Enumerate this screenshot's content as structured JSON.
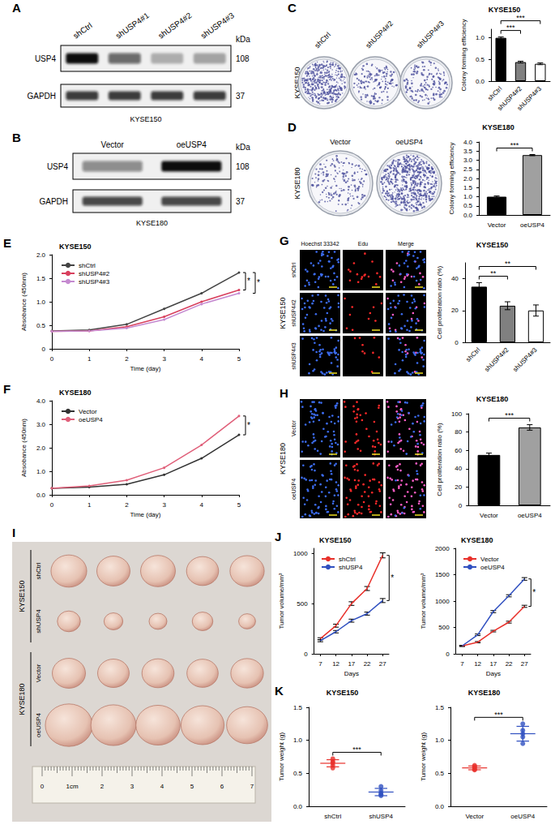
{
  "blots": [
    {
      "panel": "A",
      "cell_line": "KYSE150",
      "kda_label": "kDa",
      "lanes": [
        "shCtrl",
        "shUSP4#1",
        "shUSP4#2",
        "shUSP4#3"
      ],
      "rows": [
        {
          "label": "USP4",
          "kda": "108",
          "intensity": [
            1.0,
            0.6,
            0.28,
            0.32
          ]
        },
        {
          "label": "GAPDH",
          "kda": "37",
          "intensity": [
            0.8,
            0.8,
            0.8,
            0.8
          ]
        }
      ]
    },
    {
      "panel": "B",
      "cell_line": "KYSE180",
      "kda_label": "kDa",
      "lanes": [
        "Vector",
        "oeUSP4"
      ],
      "rows": [
        {
          "label": "USP4",
          "kda": "108",
          "intensity": [
            0.45,
            1.0
          ]
        },
        {
          "label": "GAPDH",
          "kda": "37",
          "intensity": [
            0.75,
            0.75
          ]
        }
      ]
    }
  ],
  "colony_images": [
    {
      "panel": "C",
      "cell_line": "KYSE150",
      "labels": [
        "shCtrl",
        "shUSP4#2",
        "shUSP4#3"
      ],
      "density": [
        1.0,
        0.44,
        0.4
      ]
    },
    {
      "panel": "D",
      "cell_line": "KYSE180",
      "labels": [
        "Vector",
        "oeUSP4"
      ],
      "density": [
        1.0,
        3.3
      ]
    }
  ],
  "edu_images": [
    {
      "panel": "G",
      "cell_line": "KYSE150",
      "columns": [
        "Hoechst 33342",
        "Edu",
        "Merge"
      ],
      "rows": [
        "shCtrl",
        "shUSP4#2",
        "shUSP4#3"
      ],
      "edu_percent": [
        35,
        23,
        20
      ]
    },
    {
      "panel": "H",
      "cell_line": "KYSE180",
      "columns": [],
      "rows": [
        "Vector",
        "oeUSP4"
      ],
      "edu_percent": [
        55,
        85
      ]
    }
  ],
  "tumor_photo": {
    "panel": "I",
    "groups": [
      {
        "cell_line": "KYSE150",
        "rows": [
          "shCtrl",
          "shUSP4"
        ]
      },
      {
        "cell_line": "KYSE180",
        "rows": [
          "Vector",
          "oeUSP4"
        ]
      }
    ],
    "ruler_labels": [
      "0",
      "1cm",
      "2",
      "3",
      "4",
      "5",
      "6",
      "7"
    ]
  },
  "chart_data": [
    {
      "type": "bar",
      "title": "KYSE150",
      "y_label": "Colony forming efficiency",
      "categories": [
        "shCtrl",
        "shUSP4#2",
        "shUSP4#3"
      ],
      "values": [
        1.0,
        0.44,
        0.4
      ],
      "errors": [
        0.02,
        0.02,
        0.02
      ],
      "colors": [
        "#000000",
        "#808080",
        "#ffffff"
      ],
      "ylim": [
        0,
        1.2
      ],
      "yticks": [
        {
          "value": 0,
          "label": "0.0"
        },
        {
          "value": 0.5,
          "label": "0.5"
        },
        {
          "value": 1,
          "label": "1.0"
        }
      ],
      "grid": false,
      "annotations": [
        {
          "text": "***",
          "between": [
            "shCtrl",
            "shUSP4#2"
          ]
        },
        {
          "text": "***",
          "between": [
            "shCtrl",
            "shUSP4#3"
          ]
        }
      ]
    },
    {
      "type": "bar",
      "title": "KYSE180",
      "y_label": "Colony forming efficiency",
      "categories": [
        "Vector",
        "oeUSP4"
      ],
      "values": [
        1.0,
        3.28
      ],
      "errors": [
        0.04,
        0.03
      ],
      "colors": [
        "#000000",
        "#a0a0a0"
      ],
      "ylim": [
        0,
        4
      ],
      "yticks": [
        {
          "value": 0,
          "label": "0.0"
        },
        {
          "value": 0.5,
          "label": "0.5"
        },
        {
          "value": 1,
          "label": "1.0"
        },
        {
          "value": 1.5,
          "label": "1.5"
        },
        {
          "value": 2,
          "label": "2.0"
        },
        {
          "value": 2.5,
          "label": "2.5"
        },
        {
          "value": 3,
          "label": "3.0"
        },
        {
          "value": 3.5,
          "label": "3.5"
        },
        {
          "value": 4,
          "label": "4.0"
        }
      ],
      "grid": false,
      "annotations": [
        {
          "text": "***",
          "between": [
            "Vector",
            "oeUSP4"
          ]
        }
      ]
    },
    {
      "type": "line",
      "panel": "E",
      "title": "KYSE150",
      "x_label": "Time (day)",
      "y_label": "Absobance (450nm)",
      "x": [
        0,
        1,
        2,
        3,
        4,
        5
      ],
      "xlim": [
        0,
        5
      ],
      "xticks": [
        0,
        1,
        2,
        3,
        4,
        5
      ],
      "ylim": [
        0,
        2
      ],
      "yticks": [
        0,
        0.5,
        {
          "value": 1,
          "label": "1.0"
        },
        1.5,
        {
          "value": 2,
          "label": "2.0"
        }
      ],
      "series": [
        {
          "name": "shCtrl",
          "color": "#444444",
          "values": [
            0.38,
            0.4,
            0.52,
            0.85,
            1.18,
            1.62
          ]
        },
        {
          "name": "shUSP4#2",
          "color": "#d8405e",
          "values": [
            0.37,
            0.38,
            0.47,
            0.68,
            1.0,
            1.25
          ]
        },
        {
          "name": "shUSP4#3",
          "color": "#c58ad0",
          "values": [
            0.37,
            0.38,
            0.44,
            0.62,
            0.95,
            1.18
          ]
        }
      ],
      "marker": "circle",
      "legend": "top-left",
      "grid": false,
      "annotations": [
        {
          "text": "*",
          "between": [
            "shCtrl",
            "shUSP4#2"
          ]
        },
        {
          "text": "*",
          "between": [
            "shCtrl",
            "shUSP4#3"
          ]
        }
      ]
    },
    {
      "type": "line",
      "panel": "F",
      "title": "KYSE180",
      "x_label": "Time (day)",
      "y_label": "Absobance (450nm)",
      "x": [
        0,
        1,
        2,
        3,
        4,
        5
      ],
      "xlim": [
        0,
        5
      ],
      "xticks": [
        0,
        1,
        2,
        3,
        4,
        5
      ],
      "ylim": [
        0,
        4
      ],
      "yticks": [
        {
          "value": 0,
          "label": "0.0"
        },
        {
          "value": 1,
          "label": "1.0"
        },
        {
          "value": 2,
          "label": "2.0"
        },
        {
          "value": 3,
          "label": "3.0"
        },
        {
          "value": 4,
          "label": "4.0"
        }
      ],
      "series": [
        {
          "name": "Vector",
          "color": "#333333",
          "values": [
            0.28,
            0.33,
            0.45,
            0.85,
            1.55,
            2.55
          ]
        },
        {
          "name": "oeUSP4",
          "color": "#e0607a",
          "values": [
            0.28,
            0.38,
            0.62,
            1.15,
            2.12,
            3.35
          ]
        }
      ],
      "marker": "circle",
      "legend": "top-left",
      "grid": false,
      "annotations": [
        {
          "text": "*",
          "between": [
            "Vector",
            "oeUSP4"
          ]
        }
      ]
    },
    {
      "type": "bar",
      "title": "KYSE150",
      "y_label": "Cell proliferation ratio (%)",
      "categories": [
        "shCtrl",
        "shUSP4#2",
        "shUSP4#3"
      ],
      "values": [
        35,
        23,
        20
      ],
      "errors": [
        2.5,
        2.5,
        3.5
      ],
      "colors": [
        "#000000",
        "#808080",
        "#ffffff"
      ],
      "ylim": [
        0,
        50
      ],
      "yticks": [
        0,
        20,
        40
      ],
      "grid": false,
      "annotations": [
        {
          "text": "**",
          "between": [
            "shCtrl",
            "shUSP4#2"
          ]
        },
        {
          "text": "**",
          "between": [
            "shCtrl",
            "shUSP4#3"
          ]
        }
      ]
    },
    {
      "type": "bar",
      "title": "KYSE180",
      "y_label": "Cell proliferation ratio (%)",
      "categories": [
        "Vector",
        "oeUSP4"
      ],
      "values": [
        55,
        85
      ],
      "errors": [
        2,
        3
      ],
      "colors": [
        "#000000",
        "#a0a0a0"
      ],
      "ylim": [
        0,
        100
      ],
      "yticks": [
        0,
        20,
        40,
        60,
        80,
        100
      ],
      "grid": false,
      "annotations": [
        {
          "text": "***",
          "between": [
            "Vector",
            "oeUSP4"
          ]
        }
      ]
    },
    {
      "type": "line",
      "panel": "J",
      "title": "KYSE150",
      "x_label": "Days",
      "y_label": "Tumor volume/mm³",
      "x": [
        7,
        12,
        17,
        22,
        27
      ],
      "xlim": [
        5,
        29
      ],
      "xticks": [
        7,
        12,
        17,
        22,
        27
      ],
      "ylim": [
        0,
        1050
      ],
      "yticks": [
        0,
        500,
        1000
      ],
      "series": [
        {
          "name": "shCtrl",
          "color": "#e8302a",
          "values": [
            150,
            280,
            500,
            650,
            980
          ],
          "errors": [
            10,
            15,
            18,
            20,
            25
          ]
        },
        {
          "name": "shUSP4",
          "color": "#3050c0",
          "values": [
            130,
            220,
            330,
            400,
            530
          ],
          "errors": [
            10,
            12,
            15,
            15,
            20
          ]
        }
      ],
      "legend": "top-left",
      "grid": false,
      "annotations": [
        {
          "text": "*",
          "between": [
            "shCtrl",
            "shUSP4"
          ]
        }
      ]
    },
    {
      "type": "line",
      "title": "KYSE180",
      "x_label": "Days",
      "y_label": "Tumor volume/mm³",
      "x": [
        7,
        12,
        17,
        22,
        27
      ],
      "xlim": [
        5,
        29
      ],
      "xticks": [
        7,
        12,
        17,
        22,
        27
      ],
      "ylim": [
        0,
        2000
      ],
      "yticks": [
        0,
        500,
        1000,
        1500,
        2000
      ],
      "series": [
        {
          "name": "Vector",
          "color": "#e8302a",
          "values": [
            150,
            220,
            430,
            600,
            900
          ],
          "errors": [
            8,
            12,
            15,
            18,
            20
          ]
        },
        {
          "name": "oeUSP4",
          "color": "#3050c0",
          "values": [
            150,
            360,
            800,
            1100,
            1420
          ],
          "errors": [
            10,
            15,
            20,
            20,
            25
          ]
        }
      ],
      "legend": "top-left",
      "grid": false,
      "annotations": [
        {
          "text": "*",
          "between": [
            "Vector",
            "oeUSP4"
          ]
        }
      ]
    },
    {
      "type": "scatter",
      "panel": "K",
      "title": "KYSE150",
      "y_label": "Tumor weight (g)",
      "categories": [
        "shCtrl",
        "shUSP4"
      ],
      "points": [
        [
          0.72,
          0.62,
          0.68,
          0.58,
          0.66
        ],
        [
          0.3,
          0.2,
          0.18,
          0.24,
          0.16
        ]
      ],
      "colors": [
        "#e8302a",
        "#3050c0"
      ],
      "marker": "circle",
      "ylim": [
        0,
        1.5
      ],
      "yticks": [
        {
          "value": 0,
          "label": "0.0"
        },
        {
          "value": 0.5,
          "label": "0.5"
        },
        {
          "value": 1,
          "label": "1.0"
        },
        {
          "value": 1.5,
          "label": "1.5"
        }
      ],
      "grid": false,
      "annotations": [
        {
          "text": "***",
          "between": [
            "shCtrl",
            "shUSP4"
          ]
        }
      ]
    },
    {
      "type": "scatter",
      "title": "KYSE180",
      "y_label": "Tumor weight (g)",
      "categories": [
        "Vector",
        "oeUSP4"
      ],
      "points": [
        [
          0.62,
          0.56,
          0.58,
          0.55,
          0.6
        ],
        [
          1.25,
          1.15,
          1.1,
          1.05,
          0.95
        ]
      ],
      "colors": [
        "#e8302a",
        "#3050c0"
      ],
      "marker": "circle",
      "ylim": [
        0,
        1.5
      ],
      "yticks": [
        {
          "value": 0,
          "label": "0.0"
        },
        {
          "value": 0.5,
          "label": "0.5"
        },
        {
          "value": 1,
          "label": "1.0"
        },
        {
          "value": 1.5,
          "label": "1.5"
        }
      ],
      "grid": false,
      "annotations": [
        {
          "text": "***",
          "between": [
            "Vector",
            "oeUSP4"
          ]
        }
      ]
    }
  ]
}
